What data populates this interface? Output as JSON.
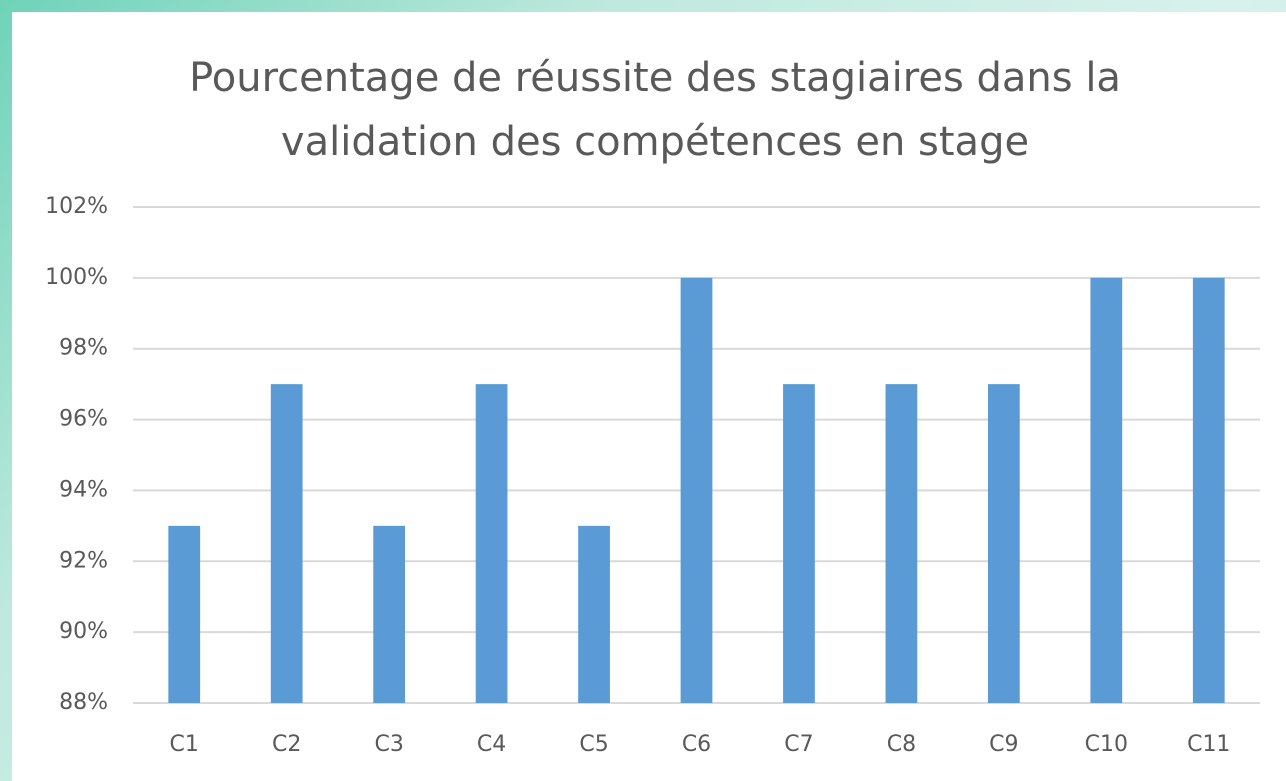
{
  "chart_data": {
    "type": "bar",
    "title": "Pourcentage de réussite des stagiaires dans la validation des compétences en stage",
    "categories": [
      "C1",
      "C2",
      "C3",
      "C4",
      "C5",
      "C6",
      "C7",
      "C8",
      "C9",
      "C10",
      "C11"
    ],
    "values": [
      93,
      97,
      93,
      97,
      93,
      100,
      97,
      97,
      97,
      100,
      100
    ],
    "color": "#5b9bd5",
    "ylim": [
      88,
      102
    ],
    "yticks": [
      {
        "value": 88,
        "label": "88%"
      },
      {
        "value": 90,
        "label": "90%"
      },
      {
        "value": 92,
        "label": "92%"
      },
      {
        "value": 94,
        "label": "94%"
      },
      {
        "value": 96,
        "label": "96%"
      },
      {
        "value": 98,
        "label": "98%"
      },
      {
        "value": 100,
        "label": "100%"
      },
      {
        "value": 102,
        "label": "102%"
      }
    ],
    "grid": true
  }
}
